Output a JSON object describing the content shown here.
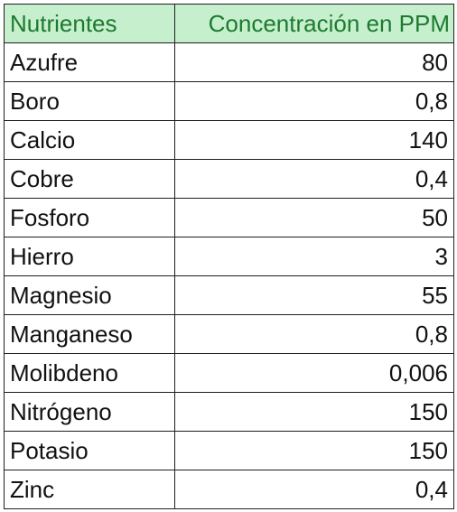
{
  "table": {
    "header_fill": "#c6efce",
    "header_text_color": "#1e7a2f",
    "columns": [
      "Nutrientes",
      "Concentración en PPM"
    ],
    "rows": [
      {
        "nutrient": "Azufre",
        "ppm": "80"
      },
      {
        "nutrient": "Boro",
        "ppm": "0,8"
      },
      {
        "nutrient": "Calcio",
        "ppm": "140"
      },
      {
        "nutrient": "Cobre",
        "ppm": "0,4"
      },
      {
        "nutrient": "Fosforo",
        "ppm": "50"
      },
      {
        "nutrient": "Hierro",
        "ppm": "3"
      },
      {
        "nutrient": "Magnesio",
        "ppm": "55"
      },
      {
        "nutrient": "Manganeso",
        "ppm": "0,8"
      },
      {
        "nutrient": "Molibdeno",
        "ppm": "0,006"
      },
      {
        "nutrient": "Nitrógeno",
        "ppm": "150"
      },
      {
        "nutrient": "Potasio",
        "ppm": "150"
      },
      {
        "nutrient": "Zinc",
        "ppm": "0,4"
      }
    ]
  }
}
